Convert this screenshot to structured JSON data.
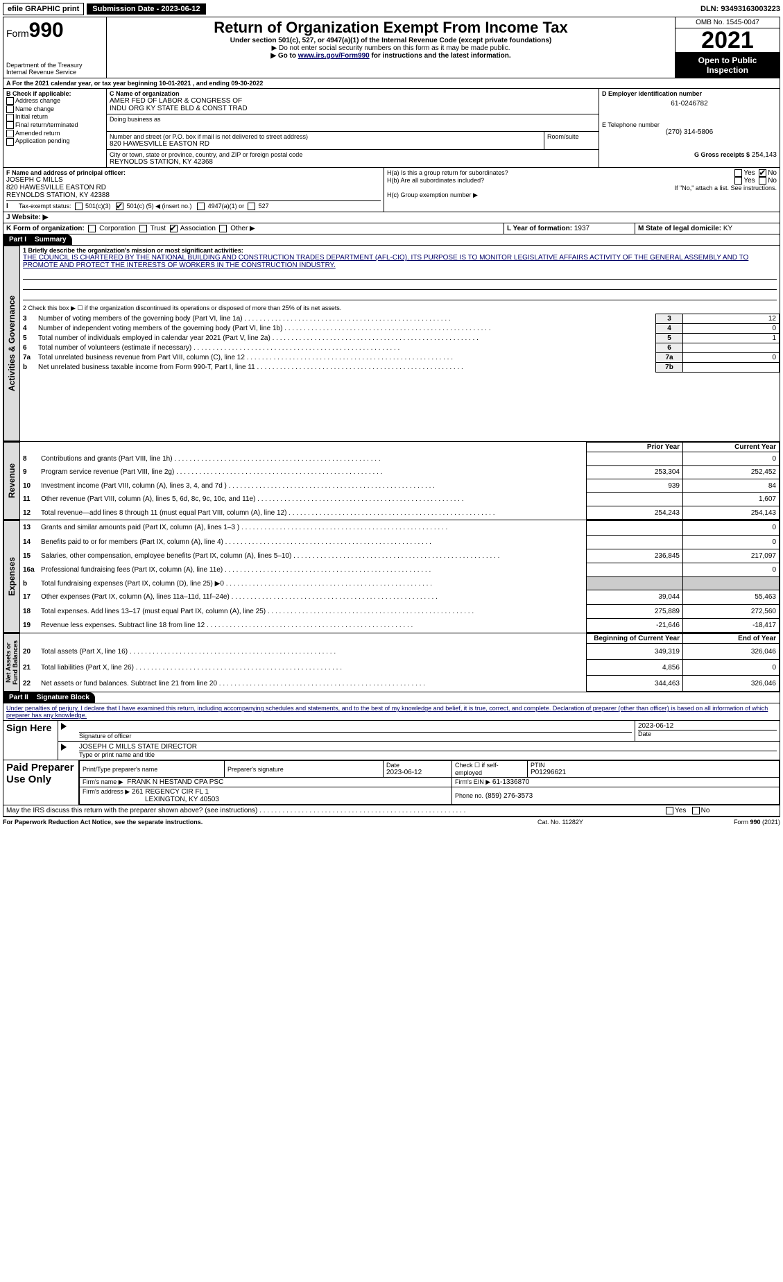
{
  "topbar": {
    "efile": "efile GRAPHIC print",
    "submission_label": "Submission Date - 2023-06-12",
    "dln": "DLN: 93493163003223"
  },
  "header": {
    "form_label": "Form",
    "form_number": "990",
    "dept": "Department of the Treasury",
    "irs": "Internal Revenue Service",
    "title": "Return of Organization Exempt From Income Tax",
    "subtitle": "Under section 501(c), 527, or 4947(a)(1) of the Internal Revenue Code (except private foundations)",
    "note1": "▶ Do not enter social security numbers on this form as it may be made public.",
    "note2_pre": "▶ Go to ",
    "note2_link": "www.irs.gov/Form990",
    "note2_post": " for instructions and the latest information.",
    "omb": "OMB No. 1545-0047",
    "tax_year": "2021",
    "open_pub": "Open to Public Inspection"
  },
  "lineA": {
    "text_pre": "For the 2021 calendar year, or tax year beginning ",
    "begin": "10-01-2021",
    "text_mid": " , and ending ",
    "end": "09-30-2022"
  },
  "boxB": {
    "label": "B Check if applicable:",
    "opts": [
      "Address change",
      "Name change",
      "Initial return",
      "Final return/terminated",
      "Amended return",
      "Application pending"
    ]
  },
  "boxC": {
    "label": "C Name of organization",
    "name1": "AMER FED OF LABOR & CONGRESS OF",
    "name2": "INDU ORG KY STATE BLD & CONST TRAD",
    "dba_label": "Doing business as",
    "addr_label": "Number and street (or P.O. box if mail is not delivered to street address)",
    "room_label": "Room/suite",
    "street": "820 HAWESVILLE EASTON RD",
    "city_label": "City or town, state or province, country, and ZIP or foreign postal code",
    "city": "REYNOLDS STATION, KY  42368"
  },
  "boxD": {
    "label": "D Employer identification number",
    "value": "61-0246782"
  },
  "boxE": {
    "label": "E Telephone number",
    "value": "(270) 314-5806"
  },
  "boxG": {
    "label": "G Gross receipts $",
    "value": "254,143"
  },
  "boxF": {
    "label": "F Name and address of principal officer:",
    "name": "JOSEPH C MILLS",
    "street": "820 HAWESVILLE EASTON RD",
    "city": "REYNOLDS STATION, KY  42388"
  },
  "boxH": {
    "a_label": "H(a)  Is this a group return for subordinates?",
    "b_label": "H(b)  Are all subordinates included?",
    "b_note": "If \"No,\" attach a list. See instructions.",
    "c_label": "H(c)  Group exemption number ▶",
    "yes": "Yes",
    "no": "No"
  },
  "boxI": {
    "label": "I   Tax-exempt status:",
    "opt1": "501(c)(3)",
    "opt2_pre": "501(c) (",
    "opt2_num": "5",
    "opt2_post": ") ◀ (insert no.)",
    "opt3": "4947(a)(1) or",
    "opt4": "527"
  },
  "boxJ": {
    "label": "J   Website: ▶"
  },
  "boxK": {
    "label": "K Form of organization:",
    "opts": [
      "Corporation",
      "Trust",
      "Association",
      "Other ▶"
    ],
    "checked_idx": 2
  },
  "boxL": {
    "label": "L Year of formation:",
    "value": "1937"
  },
  "boxM": {
    "label": "M State of legal domicile:",
    "value": "KY"
  },
  "part1": {
    "num": "Part I",
    "title": "Summary"
  },
  "mission": {
    "label": "1  Briefly describe the organization's mission or most significant activities:",
    "text": "THE COUNCIL IS CHARTERED BY THE NATIONAL BUILDING AND CONSTRUCTION TRADES DEPARTMENT (AFL-CIO). ITS PURPOSE IS TO MONITOR LEGISLATIVE AFFAIRS ACTIVITY OF THE GENERAL ASSEMBLY AND TO PROMOTE AND PROTECT THE INTERESTS OF WORKERS IN THE CONSTRUCTION INDUSTRY."
  },
  "line2": "2   Check this box ▶ ☐ if the organization discontinued its operations or disposed of more than 25% of its net assets.",
  "governance_rows": [
    {
      "n": "3",
      "label": "Number of voting members of the governing body (Part VI, line 1a)",
      "box": "3",
      "val": "12"
    },
    {
      "n": "4",
      "label": "Number of independent voting members of the governing body (Part VI, line 1b)",
      "box": "4",
      "val": "0"
    },
    {
      "n": "5",
      "label": "Total number of individuals employed in calendar year 2021 (Part V, line 2a)",
      "box": "5",
      "val": "1"
    },
    {
      "n": "6",
      "label": "Total number of volunteers (estimate if necessary)",
      "box": "6",
      "val": ""
    },
    {
      "n": "7a",
      "label": "Total unrelated business revenue from Part VIII, column (C), line 12",
      "box": "7a",
      "val": "0"
    },
    {
      "n": "b",
      "label": "Net unrelated business taxable income from Form 990-T, Part I, line 11",
      "box": "7b",
      "val": ""
    }
  ],
  "col_headers": {
    "prior": "Prior Year",
    "current": "Current Year"
  },
  "revenue_rows": [
    {
      "n": "8",
      "label": "Contributions and grants (Part VIII, line 1h)",
      "p": "",
      "c": "0"
    },
    {
      "n": "9",
      "label": "Program service revenue (Part VIII, line 2g)",
      "p": "253,304",
      "c": "252,452"
    },
    {
      "n": "10",
      "label": "Investment income (Part VIII, column (A), lines 3, 4, and 7d )",
      "p": "939",
      "c": "84"
    },
    {
      "n": "11",
      "label": "Other revenue (Part VIII, column (A), lines 5, 6d, 8c, 9c, 10c, and 11e)",
      "p": "",
      "c": "1,607"
    },
    {
      "n": "12",
      "label": "Total revenue—add lines 8 through 11 (must equal Part VIII, column (A), line 12)",
      "p": "254,243",
      "c": "254,143"
    }
  ],
  "expense_rows": [
    {
      "n": "13",
      "label": "Grants and similar amounts paid (Part IX, column (A), lines 1–3 )",
      "p": "",
      "c": "0"
    },
    {
      "n": "14",
      "label": "Benefits paid to or for members (Part IX, column (A), line 4)",
      "p": "",
      "c": "0"
    },
    {
      "n": "15",
      "label": "Salaries, other compensation, employee benefits (Part IX, column (A), lines 5–10)",
      "p": "236,845",
      "c": "217,097"
    },
    {
      "n": "16a",
      "label": "Professional fundraising fees (Part IX, column (A), line 11e)",
      "p": "",
      "c": "0"
    },
    {
      "n": "b",
      "label": "Total fundraising expenses (Part IX, column (D), line 25) ▶0",
      "p": "SHADE",
      "c": "SHADE"
    },
    {
      "n": "17",
      "label": "Other expenses (Part IX, column (A), lines 11a–11d, 11f–24e)",
      "p": "39,044",
      "c": "55,463"
    },
    {
      "n": "18",
      "label": "Total expenses. Add lines 13–17 (must equal Part IX, column (A), line 25)",
      "p": "275,889",
      "c": "272,560"
    },
    {
      "n": "19",
      "label": "Revenue less expenses. Subtract line 18 from line 12",
      "p": "-21,646",
      "c": "-18,417"
    }
  ],
  "net_headers": {
    "begin": "Beginning of Current Year",
    "end": "End of Year"
  },
  "net_rows": [
    {
      "n": "20",
      "label": "Total assets (Part X, line 16)",
      "p": "349,319",
      "c": "326,046"
    },
    {
      "n": "21",
      "label": "Total liabilities (Part X, line 26)",
      "p": "4,856",
      "c": "0"
    },
    {
      "n": "22",
      "label": "Net assets or fund balances. Subtract line 21 from line 20",
      "p": "344,463",
      "c": "326,046"
    }
  ],
  "part2": {
    "num": "Part II",
    "title": "Signature Block"
  },
  "perjury": "Under penalties of perjury, I declare that I have examined this return, including accompanying schedules and statements, and to the best of my knowledge and belief, it is true, correct, and complete. Declaration of preparer (other than officer) is based on all information of which preparer has any knowledge.",
  "sign": {
    "here": "Sign Here",
    "sig_label": "Signature of officer",
    "date_label": "Date",
    "date_val": "2023-06-12",
    "name": "JOSEPH C MILLS  STATE DIRECTOR",
    "name_label": "Type or print name and title"
  },
  "paid": {
    "title": "Paid Preparer Use Only",
    "h1": "Print/Type preparer's name",
    "h2": "Preparer's signature",
    "h3": "Date",
    "h3v": "2023-06-12",
    "h4": "Check ☐ if self-employed",
    "h5": "PTIN",
    "h5v": "P01296621",
    "firm_name_l": "Firm's name    ▶",
    "firm_name": "FRANK N HESTAND CPA PSC",
    "firm_ein_l": "Firm's EIN ▶",
    "firm_ein": "61-1336870",
    "firm_addr_l": "Firm's address ▶",
    "firm_addr1": "261 REGENCY CIR FL 1",
    "firm_addr2": "LEXINGTON, KY  40503",
    "phone_l": "Phone no.",
    "phone": "(859) 276-3573"
  },
  "footer": {
    "may_irs": "May the IRS discuss this return with the preparer shown above? (see instructions)",
    "yes": "Yes",
    "no": "No",
    "pra": "For Paperwork Reduction Act Notice, see the separate instructions.",
    "cat": "Cat. No. 11282Y",
    "form": "Form 990 (2021)"
  },
  "side_tabs": {
    "gov": "Activities & Governance",
    "rev": "Revenue",
    "exp": "Expenses",
    "net": "Net Assets or Fund Balances"
  }
}
